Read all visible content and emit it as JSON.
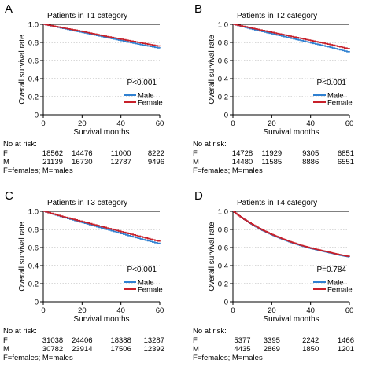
{
  "colors": {
    "male": "#2f80d1",
    "female": "#c8202a",
    "axis": "#000000",
    "grid": "#9a9a9a"
  },
  "chart_data": [
    {
      "type": "line",
      "panel_letter": "A",
      "title": "Patients in T1 category",
      "xlabel": "Survival months",
      "ylabel": "Overall survival rate",
      "xlim": [
        0,
        60
      ],
      "ylim": [
        0,
        1.0
      ],
      "x_ticks": [
        "0",
        "20",
        "40",
        "60"
      ],
      "y_ticks": [
        "0",
        "0.2",
        "0.4",
        "0.6",
        "0.8",
        "1.0"
      ],
      "grid": "horizontal dotted",
      "legend_position": "bottom-right",
      "annotation": "P<0.001",
      "series": [
        {
          "name": "Male",
          "color": "#2f80d1",
          "x": [
            0,
            10,
            20,
            30,
            40,
            50,
            60
          ],
          "y": [
            1.0,
            0.955,
            0.91,
            0.865,
            0.82,
            0.775,
            0.735
          ]
        },
        {
          "name": "Female",
          "color": "#c8202a",
          "x": [
            0,
            10,
            20,
            30,
            40,
            50,
            60
          ],
          "y": [
            1.0,
            0.96,
            0.92,
            0.875,
            0.835,
            0.795,
            0.755
          ]
        }
      ],
      "risk_table": {
        "header": "No at risk:",
        "rows": [
          {
            "label": "F",
            "values": [
              "18562",
              "14476",
              "11000",
              "8222"
            ]
          },
          {
            "label": "M",
            "values": [
              "21139",
              "16730",
              "12787",
              "9496"
            ]
          }
        ],
        "footnote": "F=females; M=males"
      }
    },
    {
      "type": "line",
      "panel_letter": "B",
      "title": "Patients in T2 category",
      "xlabel": "Survival months",
      "ylabel": "Overall survival rate",
      "xlim": [
        0,
        60
      ],
      "ylim": [
        0,
        1.0
      ],
      "x_ticks": [
        "0",
        "20",
        "40",
        "60"
      ],
      "y_ticks": [
        "0",
        "0.2",
        "0.4",
        "0.6",
        "0.8",
        "1.0"
      ],
      "grid": "horizontal dotted",
      "legend_position": "bottom-right",
      "annotation": "P<0.001",
      "series": [
        {
          "name": "Male",
          "color": "#2f80d1",
          "x": [
            0,
            10,
            20,
            30,
            40,
            50,
            60
          ],
          "y": [
            1.0,
            0.945,
            0.895,
            0.845,
            0.795,
            0.745,
            0.69
          ]
        },
        {
          "name": "Female",
          "color": "#c8202a",
          "x": [
            0,
            10,
            20,
            30,
            40,
            50,
            60
          ],
          "y": [
            1.0,
            0.955,
            0.91,
            0.865,
            0.82,
            0.775,
            0.725
          ]
        }
      ],
      "risk_table": {
        "header": "No at risk:",
        "rows": [
          {
            "label": "F",
            "values": [
              "14728",
              "11929",
              "9305",
              "6851"
            ]
          },
          {
            "label": "M",
            "values": [
              "14480",
              "11585",
              "8886",
              "6551"
            ]
          }
        ],
        "footnote": "F=females; M=males"
      }
    },
    {
      "type": "line",
      "panel_letter": "C",
      "title": "Patients in T3 category",
      "xlabel": "Survival months",
      "ylabel": "Overall survival rate",
      "xlim": [
        0,
        60
      ],
      "ylim": [
        0,
        1.0
      ],
      "x_ticks": [
        "0",
        "20",
        "40",
        "60"
      ],
      "y_ticks": [
        "0",
        "0.2",
        "0.4",
        "0.6",
        "0.8",
        "1.0"
      ],
      "grid": "horizontal dotted",
      "legend_position": "bottom-right",
      "annotation": "P<0.001",
      "series": [
        {
          "name": "Male",
          "color": "#2f80d1",
          "x": [
            0,
            10,
            20,
            30,
            40,
            50,
            60
          ],
          "y": [
            1.0,
            0.935,
            0.875,
            0.815,
            0.755,
            0.695,
            0.64
          ]
        },
        {
          "name": "Female",
          "color": "#c8202a",
          "x": [
            0,
            10,
            20,
            30,
            40,
            50,
            60
          ],
          "y": [
            1.0,
            0.94,
            0.885,
            0.83,
            0.775,
            0.72,
            0.665
          ]
        }
      ],
      "risk_table": {
        "header": "No at risk:",
        "rows": [
          {
            "label": "F",
            "values": [
              "31038",
              "24406",
              "18388",
              "13287"
            ]
          },
          {
            "label": "M",
            "values": [
              "30782",
              "23914",
              "17506",
              "12392"
            ]
          }
        ],
        "footnote": "F=females; M=males"
      }
    },
    {
      "type": "line",
      "panel_letter": "D",
      "title": "Patients in T4 category",
      "xlabel": "Survival months",
      "ylabel": "Overall survival rate",
      "xlim": [
        0,
        60
      ],
      "ylim": [
        0,
        1.0
      ],
      "x_ticks": [
        "0",
        "20",
        "40",
        "60"
      ],
      "y_ticks": [
        "0",
        "0.2",
        "0.4",
        "0.6",
        "0.8",
        "1.0"
      ],
      "grid": "horizontal dotted",
      "legend_position": "bottom-right",
      "annotation": "P=0.784",
      "series": [
        {
          "name": "Male",
          "color": "#2f80d1",
          "x": [
            0,
            5,
            10,
            15,
            20,
            25,
            30,
            35,
            40,
            45,
            50,
            55,
            60
          ],
          "y": [
            1.0,
            0.92,
            0.85,
            0.79,
            0.74,
            0.695,
            0.655,
            0.62,
            0.59,
            0.565,
            0.54,
            0.515,
            0.495
          ]
        },
        {
          "name": "Female",
          "color": "#c8202a",
          "x": [
            0,
            5,
            10,
            15,
            20,
            25,
            30,
            35,
            40,
            45,
            50,
            55,
            60
          ],
          "y": [
            1.0,
            0.92,
            0.855,
            0.795,
            0.745,
            0.7,
            0.66,
            0.625,
            0.595,
            0.57,
            0.545,
            0.52,
            0.5
          ]
        }
      ],
      "risk_table": {
        "header": "No at risk:",
        "rows": [
          {
            "label": "F",
            "values": [
              "5377",
              "3395",
              "2242",
              "1466"
            ]
          },
          {
            "label": "M",
            "values": [
              "4435",
              "2869",
              "1850",
              "1201"
            ]
          }
        ],
        "footnote": "F=females; M=males"
      }
    }
  ]
}
